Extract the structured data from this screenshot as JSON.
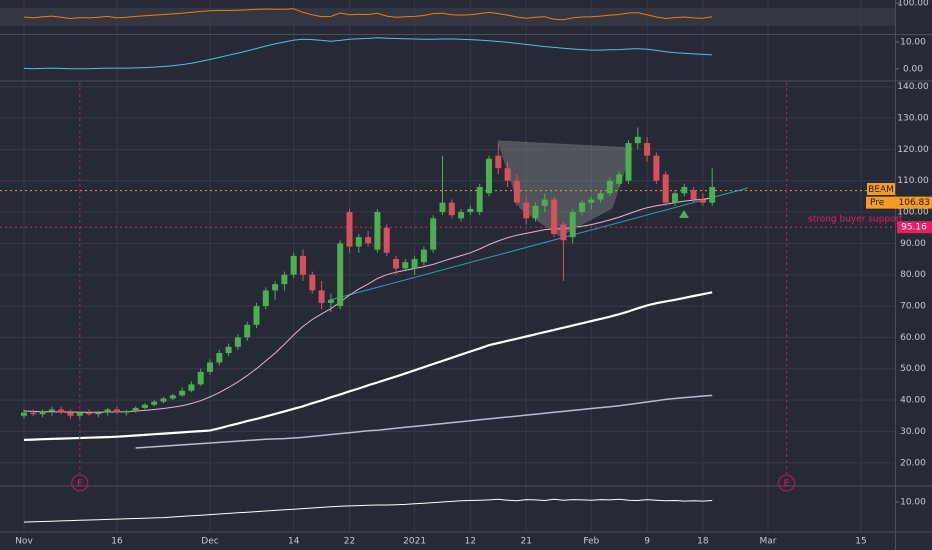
{
  "chart_data": {
    "type": "candlestick",
    "ticker": "BEAM",
    "annotation": "strong buyer support",
    "categories": [
      "Nov",
      null,
      null,
      null,
      null,
      null,
      null,
      null,
      null,
      null,
      "16",
      null,
      null,
      null,
      null,
      null,
      null,
      null,
      null,
      null,
      "Dec",
      null,
      null,
      null,
      null,
      null,
      null,
      null,
      null,
      "14",
      null,
      null,
      null,
      null,
      null,
      "22",
      null,
      null,
      null,
      null,
      null,
      null,
      "2021",
      null,
      null,
      null,
      null,
      null,
      "12",
      null,
      null,
      null,
      null,
      null,
      "21",
      null,
      null,
      null,
      null,
      null,
      null,
      "Feb",
      null,
      null,
      null,
      null,
      null,
      "9",
      null,
      null,
      null,
      null,
      null,
      "18",
      null,
      null,
      null,
      null,
      null,
      null,
      "Mar",
      null,
      null,
      null,
      null,
      null,
      null,
      null,
      null,
      null,
      "15"
    ],
    "open": [
      35,
      36,
      35.5,
      36.5,
      37,
      36,
      35,
      36,
      35.5,
      36,
      37,
      36,
      36.5,
      37.5,
      38.5,
      39.5,
      40.5,
      41.5,
      43,
      45,
      49,
      52,
      55,
      57,
      60,
      64,
      70,
      75,
      77,
      80,
      86,
      80,
      75,
      71,
      70,
      100,
      89,
      92,
      88,
      95,
      85,
      82,
      82,
      84,
      88,
      100,
      103,
      98,
      100,
      100,
      106,
      118,
      114,
      110,
      103,
      98,
      102,
      104,
      96,
      92,
      100,
      103,
      104,
      106,
      109,
      110,
      122,
      122,
      118,
      112,
      103,
      106,
      107,
      104,
      103,
      null,
      null,
      null,
      null,
      null,
      null,
      null,
      null,
      null,
      null,
      null,
      null,
      null,
      null,
      null,
      null
    ],
    "high": [
      37,
      37,
      37,
      38,
      38,
      37,
      36.5,
      37,
      36.5,
      37.5,
      38,
      37,
      38,
      39,
      40,
      41,
      42,
      44,
      46,
      50,
      53,
      56,
      58,
      61,
      65,
      71,
      76,
      78,
      81,
      87,
      88,
      81,
      78,
      74,
      91,
      101,
      93,
      94,
      101,
      96,
      86,
      85,
      86,
      89,
      99,
      118,
      104,
      101,
      102,
      109,
      118,
      122,
      116,
      112,
      105,
      103,
      106,
      105,
      97,
      101,
      104,
      105,
      107,
      111,
      113,
      123,
      127,
      124,
      119,
      113,
      107,
      109,
      108,
      106,
      114,
      null,
      null,
      null,
      null,
      null,
      null,
      null,
      null,
      null,
      null,
      null,
      null,
      null,
      null,
      null,
      null
    ],
    "low": [
      34,
      35,
      34.5,
      35,
      35.5,
      34,
      34,
      35,
      34.5,
      35,
      35.5,
      35,
      36,
      37,
      38,
      39,
      40,
      41,
      42.5,
      44.5,
      48,
      51,
      54,
      56,
      59,
      63,
      69,
      72,
      75,
      79,
      78,
      74,
      69,
      68,
      69,
      87,
      87,
      89,
      87,
      86,
      80,
      81,
      80,
      83,
      87,
      99,
      98,
      97,
      99,
      99,
      105,
      112,
      108,
      102,
      96,
      97,
      100,
      92,
      78,
      90,
      99,
      101,
      103,
      105,
      108,
      109,
      120,
      116,
      109,
      102,
      102,
      105,
      103,
      102,
      102,
      null,
      null,
      null,
      null,
      null,
      null,
      null,
      null,
      null,
      null,
      null,
      null,
      null,
      null,
      null,
      null
    ],
    "close": [
      36,
      35.5,
      36.5,
      37,
      36,
      35,
      36,
      35.5,
      36,
      37,
      36,
      36.5,
      37.5,
      38.5,
      39.5,
      40.5,
      41.5,
      43,
      45,
      49,
      52,
      55,
      57,
      60,
      64,
      70,
      75,
      77,
      80,
      86,
      80,
      75,
      71,
      72,
      90,
      89,
      92,
      90,
      100,
      87,
      82,
      84,
      85,
      88,
      98,
      103,
      99,
      100,
      101,
      108,
      117,
      114,
      110,
      103,
      98,
      102,
      104,
      93,
      91,
      100,
      103,
      104,
      106,
      110,
      112,
      122,
      124,
      118,
      110,
      103,
      106,
      108,
      104,
      103,
      108,
      null,
      null,
      null,
      null,
      null,
      null,
      null,
      null,
      null,
      null,
      null,
      null,
      null,
      null,
      null,
      null
    ],
    "up_color": "#4caf50",
    "down_color": "#d9505c",
    "ylim": [
      12.9,
      141.5
    ],
    "yticks": [
      {
        "value": 140,
        "label": "140.00"
      },
      {
        "value": 130,
        "label": "130.00"
      },
      {
        "value": 120,
        "label": "120.00"
      },
      {
        "value": 110,
        "label": "110.00"
      },
      {
        "value": 100,
        "label": "100.00"
      },
      {
        "value": 90,
        "label": "90.00"
      },
      {
        "value": 80,
        "label": "80.00"
      },
      {
        "value": 70,
        "label": "70.00"
      },
      {
        "value": 60,
        "label": "60.00"
      },
      {
        "value": 50,
        "label": "50.00"
      },
      {
        "value": 40,
        "label": "40.00"
      },
      {
        "value": 30,
        "label": "30.00"
      },
      {
        "value": 20,
        "label": "20.00"
      }
    ],
    "grid": true,
    "overlays": [
      {
        "color": "#e7b5c8",
        "width": 1,
        "values": [
          36.5,
          36.4,
          36.3,
          36.3,
          36.2,
          36.2,
          36.1,
          36.1,
          36.1,
          36.2,
          36.2,
          36.3,
          36.5,
          36.7,
          37,
          37.3,
          37.7,
          38.2,
          38.9,
          39.8,
          41,
          42.4,
          44,
          45.8,
          47.8,
          50,
          52.5,
          55,
          57.8,
          60.8,
          63.5,
          65.7,
          67.5,
          69.2,
          71.3,
          73.5,
          75.4,
          77,
          78.8,
          80,
          80.8,
          81.4,
          82,
          82.6,
          83.3,
          84.3,
          85.2,
          86.1,
          87,
          88.2,
          89.6,
          90.8,
          91.8,
          92.6,
          93.2,
          93.8,
          94.4,
          94.6,
          94.7,
          95,
          95.5,
          96,
          96.7,
          97.5,
          98.4,
          99.4,
          100.5,
          101.4,
          102,
          102.5,
          103,
          103.5,
          103.8,
          104.1,
          104.5,
          null,
          null,
          null,
          null,
          null,
          null,
          null,
          null,
          null,
          null,
          null,
          null,
          null,
          null,
          null,
          null
        ]
      },
      {
        "color": "#ffffff",
        "width": 2.2,
        "values": [
          27.3,
          27.4,
          27.5,
          27.6,
          27.7,
          27.8,
          27.9,
          28,
          28.1,
          28.2,
          28.3,
          28.5,
          28.7,
          28.9,
          29.1,
          29.3,
          29.5,
          29.7,
          29.9,
          30.1,
          30.3,
          31,
          31.8,
          32.5,
          33.3,
          34,
          34.8,
          35.6,
          36.4,
          37.2,
          38,
          39,
          39.9,
          40.9,
          41.8,
          42.8,
          43.7,
          44.7,
          45.6,
          46.6,
          47.5,
          48.5,
          49.5,
          50.5,
          51.5,
          52.5,
          53.5,
          54.5,
          55.5,
          56.5,
          57.5,
          58.2,
          58.9,
          59.6,
          60.3,
          61,
          61.7,
          62.4,
          63.1,
          63.8,
          64.5,
          65.2,
          65.9,
          66.6,
          67.4,
          68.3,
          69.3,
          70.2,
          70.9,
          71.5,
          72,
          72.6,
          73.2,
          73.8,
          74.4,
          null,
          null,
          null,
          null,
          null,
          null,
          null,
          null,
          null,
          null,
          null,
          null,
          null,
          null,
          null,
          null
        ]
      },
      {
        "color": "#b9bccb",
        "width": 1.5,
        "values": [
          null,
          null,
          null,
          null,
          null,
          null,
          null,
          null,
          null,
          null,
          null,
          null,
          24.7,
          24.9,
          25.1,
          25.3,
          25.5,
          25.7,
          25.9,
          26.1,
          26.3,
          26.5,
          26.7,
          26.9,
          27.1,
          27.3,
          27.5,
          27.6,
          27.7,
          27.9,
          28.1,
          28.4,
          28.7,
          29,
          29.3,
          29.6,
          29.9,
          30.2,
          30.4,
          30.7,
          31,
          31.3,
          31.6,
          31.9,
          32.2,
          32.5,
          32.8,
          33.1,
          33.4,
          33.7,
          34,
          34.3,
          34.6,
          34.9,
          35.2,
          35.5,
          35.8,
          36.1,
          36.4,
          36.7,
          37,
          37.3,
          37.6,
          37.9,
          38.2,
          38.6,
          39,
          39.4,
          39.8,
          40.2,
          40.5,
          40.8,
          41,
          41.3,
          41.5,
          null,
          null,
          null,
          null,
          null,
          null,
          null,
          null,
          null,
          null,
          null,
          null,
          null,
          null,
          null,
          null
        ]
      }
    ],
    "price_lines": [
      {
        "value": 106.83,
        "tag": "Pre",
        "color": "#f59b26"
      },
      {
        "value": 95.16,
        "color": "#e91e63"
      }
    ],
    "earnings": [
      {
        "index": 6,
        "label": "E"
      },
      {
        "index": 82,
        "label": "E"
      }
    ],
    "panes": [
      {
        "ylim": [
          0,
          110
        ],
        "yticks": [
          {
            "value": 100,
            "label": "100.00"
          }
        ],
        "color": "#f57c00",
        "values": [
          55,
          52,
          56,
          58,
          54,
          50,
          53,
          52,
          54,
          57,
          52,
          54,
          57,
          59,
          61,
          63,
          65,
          67,
          70,
          73,
          75,
          76,
          76,
          77,
          78,
          80,
          81,
          80,
          80,
          82,
          70,
          62,
          56,
          57,
          68,
          62,
          64,
          63,
          67,
          58,
          54,
          56,
          57,
          60,
          66,
          67,
          62,
          61,
          62,
          66,
          70,
          66,
          61,
          55,
          51,
          54,
          56,
          48,
          46,
          52,
          55,
          56,
          58,
          61,
          63,
          68,
          69,
          62,
          55,
          50,
          53,
          55,
          52,
          51,
          56,
          null,
          null,
          null,
          null,
          null,
          null,
          null,
          null,
          null,
          null,
          null,
          null,
          null,
          null,
          null,
          null
        ]
      },
      {
        "ylim": [
          -4.1,
          12.6
        ],
        "yticks": [
          {
            "value": 10,
            "label": "10.00"
          },
          {
            "value": 0,
            "label": "0.00"
          }
        ],
        "color": "#4fc3d9",
        "values": [
          0.2,
          0.1,
          0.2,
          0.3,
          0.2,
          0.1,
          0.1,
          0.1,
          0.2,
          0.3,
          0.3,
          0.3,
          0.4,
          0.5,
          0.7,
          0.9,
          1.2,
          1.6,
          2.1,
          2.8,
          3.5,
          4.3,
          5.1,
          5.9,
          6.7,
          7.6,
          8.5,
          9.3,
          10,
          10.7,
          11,
          10.9,
          10.6,
          10.3,
          10.6,
          11,
          11.2,
          11.3,
          11.6,
          11.4,
          11.3,
          11.2,
          11.1,
          11,
          11,
          11.1,
          11.1,
          11,
          10.9,
          10.7,
          10.5,
          10.2,
          9.9,
          9.5,
          9.1,
          8.7,
          8.3,
          8,
          7.7,
          7.4,
          7.2,
          7,
          7,
          7.1,
          7.2,
          7.4,
          7.5,
          7.3,
          6.9,
          6.4,
          6,
          5.8,
          5.6,
          5.4,
          5.2,
          null,
          null,
          null,
          null,
          null,
          null,
          null,
          null,
          null,
          null,
          null,
          null,
          null,
          null,
          null,
          null
        ]
      },
      {
        "ylim": [
          0,
          15
        ],
        "yticks": [
          {
            "value": 10,
            "label": "10.00"
          }
        ],
        "color": "#ffffff",
        "values": [
          3.3,
          3.4,
          3.5,
          3.6,
          3.7,
          3.8,
          3.9,
          4,
          4.1,
          4.2,
          4.3,
          4.4,
          4.5,
          4.6,
          4.7,
          4.8,
          5,
          5.2,
          5.4,
          5.6,
          5.8,
          6,
          6.2,
          6.4,
          6.6,
          6.8,
          7,
          7.2,
          7.4,
          7.6,
          7.8,
          8,
          8.2,
          8.4,
          8.6,
          8.7,
          8.8,
          8.9,
          9,
          9,
          9.1,
          9.2,
          9.4,
          9.6,
          9.8,
          10,
          10.2,
          10.4,
          10.5,
          10.6,
          10.7,
          10.9,
          10.6,
          10.4,
          10.8,
          10.7,
          10.5,
          10.9,
          10.6,
          10.8,
          10.7,
          10.6,
          10.8,
          10.7,
          10.9,
          10.6,
          10.5,
          10.8,
          10.6,
          10.4,
          10.5,
          10.3,
          10.4,
          10.3,
          10.5,
          null,
          null,
          null,
          null,
          null,
          null,
          null,
          null,
          null,
          null,
          null,
          null,
          null,
          null,
          null,
          null
        ]
      }
    ]
  }
}
